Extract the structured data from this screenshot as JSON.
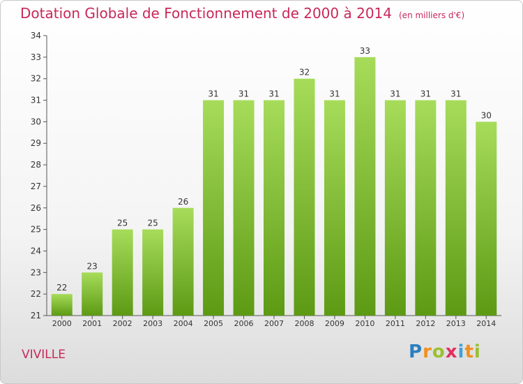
{
  "title": "Dotation Globale de Fonctionnement de 2000 à 2014",
  "subtitle": "(en milliers d'€)",
  "commune": "VIVILLE",
  "logo": "Proxiti",
  "colors": {
    "title": "#c8285a",
    "bar_top": "#a6dc5a",
    "bar_bottom": "#5d9a14"
  },
  "chart_data": {
    "type": "bar",
    "title": "Dotation Globale de Fonctionnement de 2000 à 2014",
    "subtitle": "(en milliers d'€)",
    "xlabel": "",
    "ylabel": "",
    "categories": [
      "2000",
      "2001",
      "2002",
      "2003",
      "2004",
      "2005",
      "2006",
      "2007",
      "2008",
      "2009",
      "2010",
      "2011",
      "2012",
      "2013",
      "2014"
    ],
    "values": [
      22,
      23,
      25,
      25,
      26,
      31,
      31,
      31,
      32,
      31,
      33,
      31,
      31,
      31,
      30
    ],
    "ylim": [
      21,
      34
    ],
    "yticks": [
      21,
      22,
      23,
      24,
      25,
      26,
      27,
      28,
      29,
      30,
      31,
      32,
      33,
      34
    ],
    "grid": false,
    "legend": "none"
  }
}
